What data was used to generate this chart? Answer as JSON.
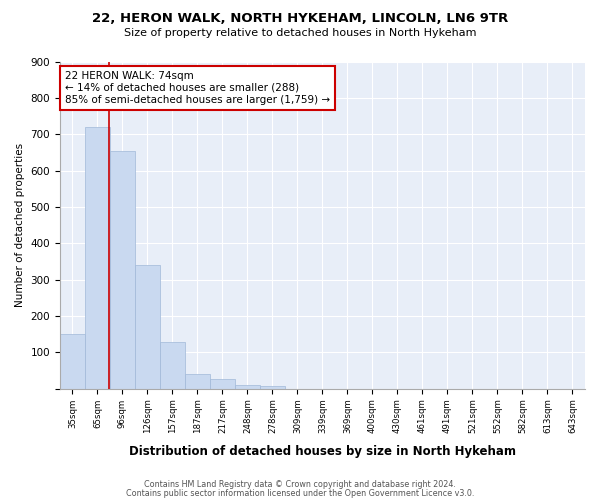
{
  "title1": "22, HERON WALK, NORTH HYKEHAM, LINCOLN, LN6 9TR",
  "title2": "Size of property relative to detached houses in North Hykeham",
  "xlabel": "Distribution of detached houses by size in North Hykeham",
  "ylabel": "Number of detached properties",
  "categories": [
    "35sqm",
    "65sqm",
    "96sqm",
    "126sqm",
    "157sqm",
    "187sqm",
    "217sqm",
    "248sqm",
    "278sqm",
    "309sqm",
    "339sqm",
    "369sqm",
    "400sqm",
    "430sqm",
    "461sqm",
    "491sqm",
    "521sqm",
    "552sqm",
    "582sqm",
    "613sqm",
    "643sqm"
  ],
  "values": [
    150,
    720,
    655,
    340,
    128,
    42,
    28,
    10,
    8,
    0,
    0,
    0,
    0,
    0,
    0,
    0,
    0,
    0,
    0,
    0,
    0
  ],
  "bar_color": "#c9d9f0",
  "bar_edge_color": "#a0b8d8",
  "red_line_x": 1.45,
  "annotation_line1": "22 HERON WALK: 74sqm",
  "annotation_line2": "← 14% of detached houses are smaller (288)",
  "annotation_line3": "85% of semi-detached houses are larger (1,759) →",
  "annotation_box_color": "#ffffff",
  "annotation_box_edge": "#cc0000",
  "footer1": "Contains HM Land Registry data © Crown copyright and database right 2024.",
  "footer2": "Contains public sector information licensed under the Open Government Licence v3.0.",
  "bg_color": "#ffffff",
  "plot_bg_color": "#e8eef8",
  "grid_color": "#ffffff",
  "ylim": [
    0,
    900
  ],
  "yticks": [
    0,
    100,
    200,
    300,
    400,
    500,
    600,
    700,
    800,
    900
  ]
}
